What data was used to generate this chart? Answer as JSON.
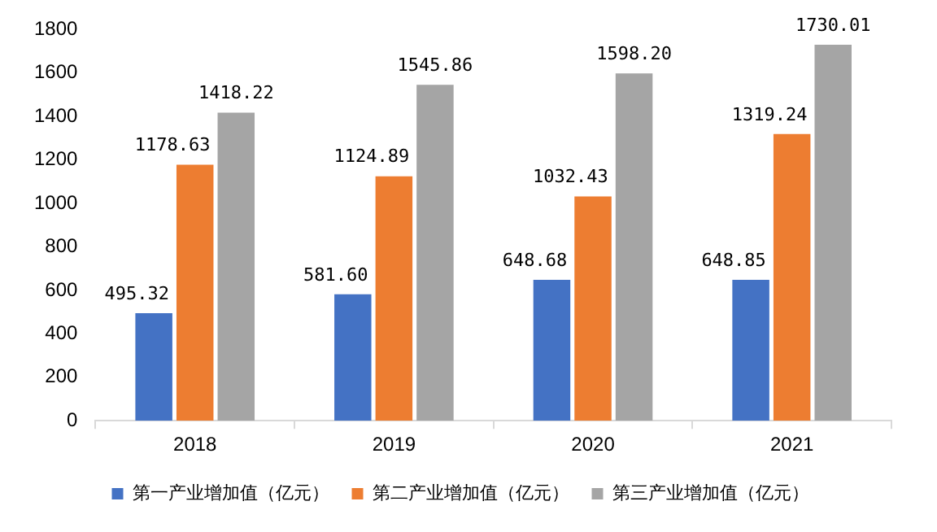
{
  "chart_data": {
    "type": "bar",
    "categories": [
      "2018",
      "2019",
      "2020",
      "2021"
    ],
    "series": [
      {
        "name": "第一产业增加值（亿元）",
        "color": "#4472c4",
        "values": [
          495.32,
          581.6,
          648.68,
          648.85
        ],
        "value_labels": [
          "495.32",
          "581.60",
          "648.68",
          "648.85"
        ]
      },
      {
        "name": "第二产业增加值（亿元）",
        "color": "#ed7d31",
        "values": [
          1178.63,
          1124.89,
          1032.43,
          1319.24
        ],
        "value_labels": [
          "1178.63",
          "1124.89",
          "1032.43",
          "1319.24"
        ]
      },
      {
        "name": "第三产业增加值（亿元）",
        "color": "#a5a5a5",
        "values": [
          1418.22,
          1545.86,
          1598.2,
          1730.01
        ],
        "value_labels": [
          "1418.22",
          "1545.86",
          "1598.20",
          "1730.01"
        ]
      }
    ],
    "ylim": [
      0,
      1800
    ],
    "yticks": [
      0,
      200,
      400,
      600,
      800,
      1000,
      1200,
      1400,
      1600,
      1800
    ],
    "grid": false,
    "legend": "bottom"
  }
}
